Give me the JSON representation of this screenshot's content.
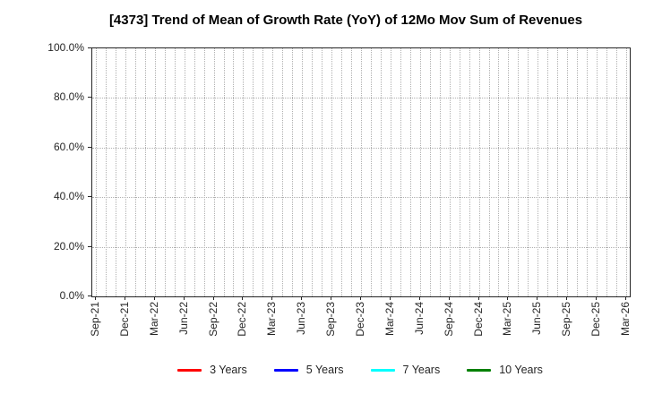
{
  "chart_data": {
    "type": "line",
    "title": "[4373]  Trend of Mean of Growth Rate (YoY) of 12Mo Mov Sum of Revenues",
    "x_tick_labels": [
      "Sep-21",
      "Dec-21",
      "Mar-22",
      "Jun-22",
      "Sep-22",
      "Dec-22",
      "Mar-23",
      "Jun-23",
      "Sep-23",
      "Dec-23",
      "Mar-24",
      "Jun-24",
      "Sep-24",
      "Dec-24",
      "Mar-25",
      "Jun-25",
      "Sep-25",
      "Dec-25",
      "Mar-26"
    ],
    "y_tick_labels": [
      "0.0%",
      "20.0%",
      "40.0%",
      "60.0%",
      "80.0%",
      "100.0%"
    ],
    "ylim": [
      0,
      100
    ],
    "y_tick_step_pct": 20,
    "x_gridline_interval": "monthly",
    "grid": true,
    "plot_is_empty": true,
    "legend_position": "bottom-center",
    "series": [
      {
        "name": "3 Years",
        "color": "#ff0000",
        "values": []
      },
      {
        "name": "5 Years",
        "color": "#0000ff",
        "values": []
      },
      {
        "name": "7 Years",
        "color": "#00ffff",
        "values": []
      },
      {
        "name": "10 Years",
        "color": "#008000",
        "values": []
      }
    ],
    "colors": {
      "background": "#ffffff",
      "grid": "#b0b0b0",
      "axis": "#262626",
      "text": "#262626",
      "title": "#000000"
    }
  }
}
